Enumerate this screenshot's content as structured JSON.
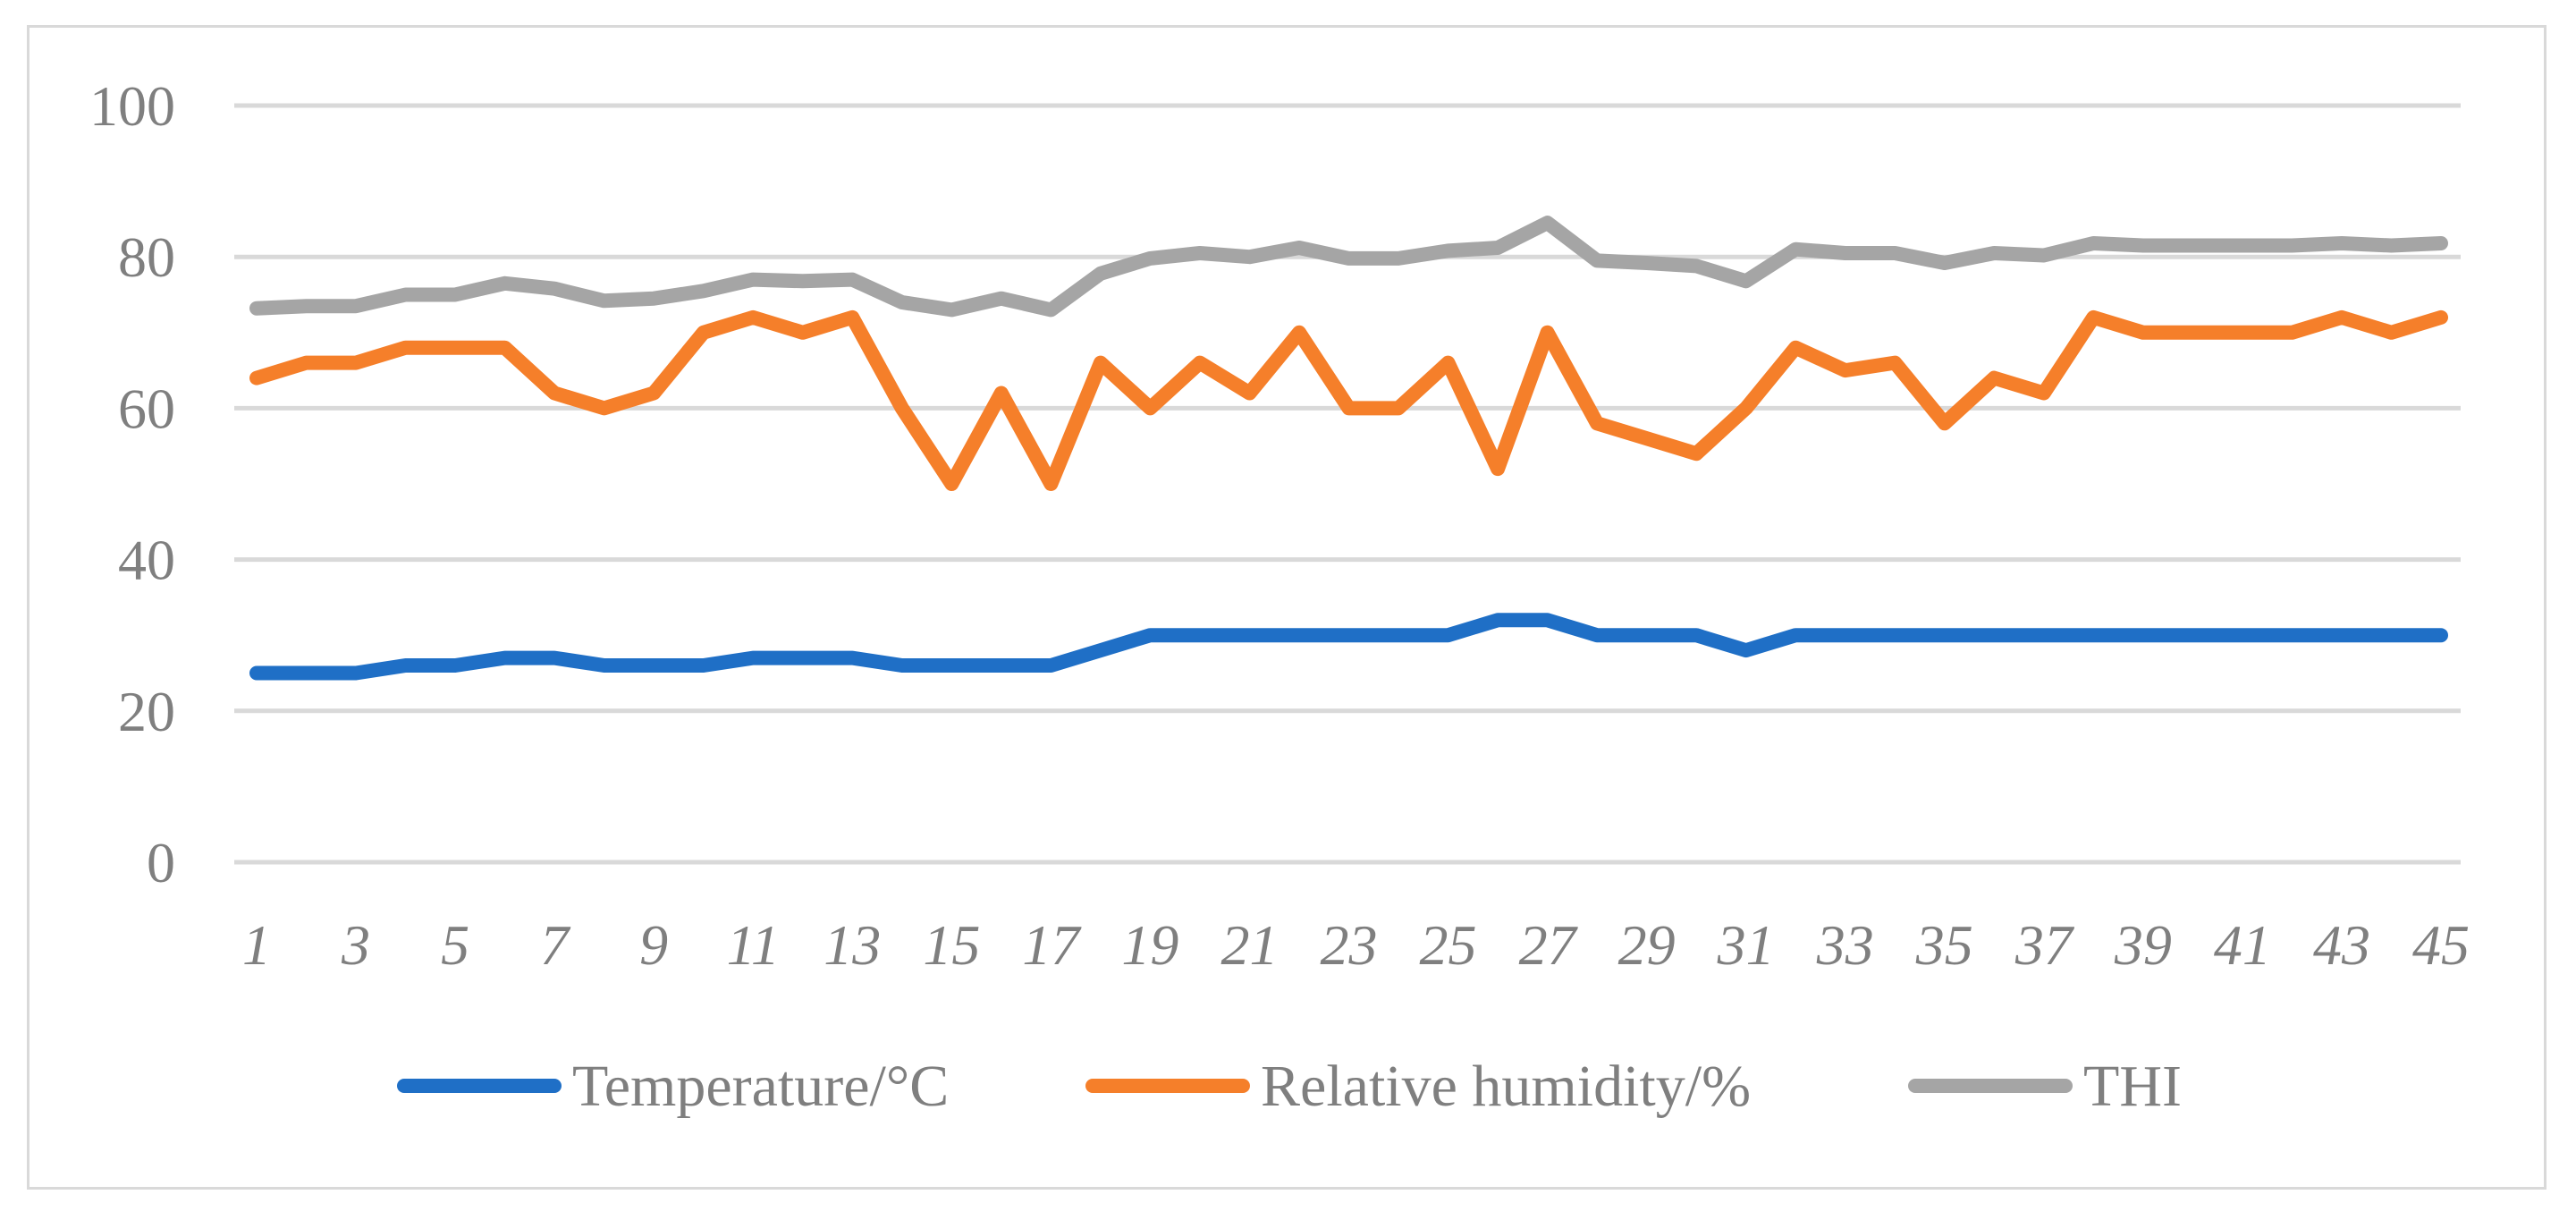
{
  "chart_data": {
    "type": "line",
    "title": "",
    "xlabel": "",
    "ylabel": "",
    "ylim": [
      0,
      100
    ],
    "yticks": [
      0,
      20,
      40,
      60,
      80,
      100
    ],
    "grid": true,
    "legend_position": "bottom",
    "x": [
      1,
      2,
      3,
      4,
      5,
      6,
      7,
      8,
      9,
      10,
      11,
      12,
      13,
      14,
      15,
      16,
      17,
      18,
      19,
      20,
      21,
      22,
      23,
      24,
      25,
      26,
      27,
      28,
      29,
      30,
      31,
      32,
      33,
      34,
      35,
      36,
      37,
      38,
      39,
      40,
      41,
      42,
      43,
      44,
      45
    ],
    "xtick_labels": [
      "1",
      "3",
      "5",
      "7",
      "9",
      "11",
      "13",
      "15",
      "17",
      "19",
      "21",
      "23",
      "25",
      "27",
      "29",
      "31",
      "33",
      "35",
      "37",
      "39",
      "41",
      "43",
      "45"
    ],
    "series": [
      {
        "name": "Temperature/°C",
        "color": "#1f6fc6",
        "values": [
          25,
          25,
          25,
          26,
          26,
          27,
          27,
          26,
          26,
          26,
          27,
          27,
          27,
          26,
          26,
          26,
          26,
          28,
          30,
          30,
          30,
          30,
          30,
          30,
          30,
          32,
          32,
          30,
          30,
          30,
          28,
          30,
          30,
          30,
          30,
          30,
          30,
          30,
          30,
          30,
          30,
          30,
          30,
          30,
          30
        ]
      },
      {
        "name": "Relative humidity/%",
        "color": "#f57f2a",
        "values": [
          64,
          66,
          66,
          68,
          68,
          68,
          62,
          60,
          62,
          70,
          72,
          70,
          72,
          60,
          50,
          62,
          50,
          66,
          60,
          66,
          62,
          70,
          60,
          60,
          66,
          52,
          70,
          58,
          56,
          54,
          60,
          68,
          65,
          66,
          58,
          64,
          62,
          72,
          70,
          70,
          70,
          70,
          72,
          70,
          72
        ]
      },
      {
        "name": "THI",
        "color": "#a5a5a5",
        "values": [
          73.2,
          73.5,
          73.5,
          75,
          75,
          76.5,
          75.8,
          74.2,
          74.5,
          75.5,
          77,
          76.8,
          77,
          74,
          73,
          74.5,
          73,
          77.8,
          79.8,
          80.5,
          80,
          81.2,
          79.8,
          79.8,
          80.8,
          81.2,
          84.5,
          79.5,
          79.2,
          78.8,
          76.8,
          81,
          80.5,
          80.5,
          79.2,
          80.5,
          80.2,
          81.8,
          81.5,
          81.5,
          81.5,
          81.5,
          81.8,
          81.5,
          81.8
        ]
      }
    ]
  }
}
